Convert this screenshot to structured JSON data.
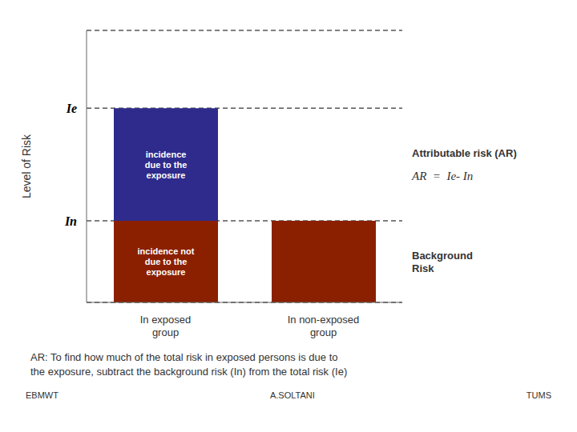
{
  "chart_data": {
    "type": "bar",
    "stacked": true,
    "categories": [
      "In exposed\ngroup",
      "In non-exposed\ngroup"
    ],
    "series": [
      {
        "color": "#8b2000",
        "values": [
          0.42,
          0.42
        ]
      },
      {
        "color": "#2e2b8c",
        "values": [
          0.58,
          null
        ]
      }
    ],
    "ylabel": "Level of Risk",
    "ylim": [
      0,
      1.4
    ],
    "yticks": [
      {
        "value": 1.0,
        "label": "Ie"
      },
      {
        "value": 0.42,
        "label": "In"
      }
    ],
    "grid": true,
    "annotations": [
      "incidence\ndue to the\nexposure",
      "incidence not\ndue to the\nexposure",
      "Attributable risk (AR)",
      "AR  =  Ie- In",
      "Background\nRisk",
      "AR:  To find how much of the total risk in exposed persons is due to",
      "the exposure, subtract the background risk (In) from the total risk (Ie)",
      "EBMWT",
      "A.SOLTANI",
      "TUMS"
    ]
  }
}
